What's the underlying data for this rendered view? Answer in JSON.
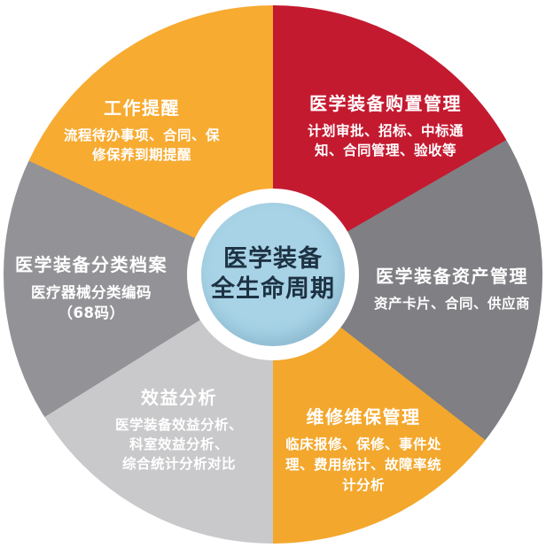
{
  "center": {
    "line1": "医学装备",
    "line2": "全生命周期",
    "bg_color": "#a8d3e6",
    "text_color": "#1d3243"
  },
  "palette": {
    "background": "#ffffff",
    "label_color": "#ffffff",
    "hub_ring_color": "#ffffff"
  },
  "segments": [
    {
      "id": "procurement",
      "title": "医学装备购置管理",
      "subtitle": "计划审批、招标、中标通\n知、合同管理、验收等",
      "color": "#c41a30",
      "angle_start": 0,
      "angle_end": 60
    },
    {
      "id": "asset",
      "title": "医学装备资产管理",
      "subtitle": "资产卡片、合同、供应商",
      "color": "#7f7f84",
      "angle_start": 60,
      "angle_end": 128
    },
    {
      "id": "maintenance",
      "title": "维修维保管理",
      "subtitle": "临床报修、保修、事件处\n理、费用统计、故障率统\n计分析",
      "color": "#f3a72c",
      "angle_start": 128,
      "angle_end": 180
    },
    {
      "id": "benefit",
      "title": "效益分析",
      "subtitle": "医学装备效益分析、\n科室效益分析、\n综合统计分析对比",
      "color": "#c9c9cb",
      "angle_start": 180,
      "angle_end": 238
    },
    {
      "id": "archive",
      "title": "医学装备分类档案",
      "subtitle": "医疗器械分类编码\n（68码）",
      "color": "#939397",
      "angle_start": 238,
      "angle_end": 295
    },
    {
      "id": "reminder",
      "title": "工作提醒",
      "subtitle": "流程待办事项、合同、保\n修保养到期提醒",
      "color": "#f7ab31",
      "angle_start": 295,
      "angle_end": 360
    }
  ]
}
